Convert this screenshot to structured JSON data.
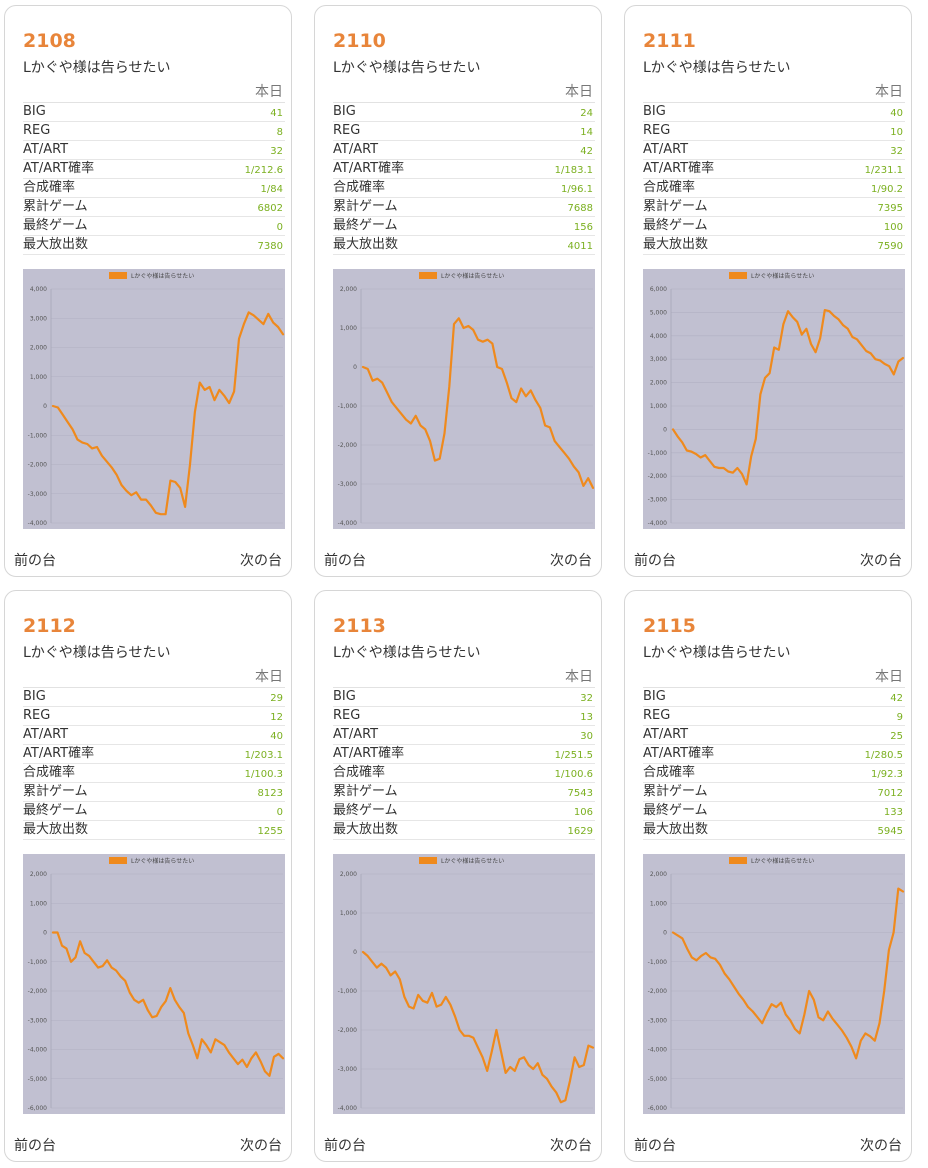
{
  "header_col": "本日",
  "nav": {
    "prev": "前の台",
    "next": "次の台"
  },
  "machine_name": "Lかぐや様は告らせたい",
  "legend_color": "#ef8a1d",
  "cards": [
    {
      "number": "2108",
      "name": "Lかぐや様は告らせたい",
      "stats": [
        {
          "label": "BIG",
          "value": "41"
        },
        {
          "label": "REG",
          "value": "8"
        },
        {
          "label": "AT/ART",
          "value": "32"
        },
        {
          "label": "AT/ART確率",
          "value": "1/212.6"
        },
        {
          "label": "合成確率",
          "value": "1/84"
        },
        {
          "label": "累計ゲーム",
          "value": "6802"
        },
        {
          "label": "最終ゲーム",
          "value": "0"
        },
        {
          "label": "最大放出数",
          "value": "7380"
        }
      ]
    },
    {
      "number": "2110",
      "name": "Lかぐや様は告らせたい",
      "stats": [
        {
          "label": "BIG",
          "value": "24"
        },
        {
          "label": "REG",
          "value": "14"
        },
        {
          "label": "AT/ART",
          "value": "42"
        },
        {
          "label": "AT/ART確率",
          "value": "1/183.1"
        },
        {
          "label": "合成確率",
          "value": "1/96.1"
        },
        {
          "label": "累計ゲーム",
          "value": "7688"
        },
        {
          "label": "最終ゲーム",
          "value": "156"
        },
        {
          "label": "最大放出数",
          "value": "4011"
        }
      ]
    },
    {
      "number": "2111",
      "name": "Lかぐや様は告らせたい",
      "stats": [
        {
          "label": "BIG",
          "value": "40"
        },
        {
          "label": "REG",
          "value": "10"
        },
        {
          "label": "AT/ART",
          "value": "32"
        },
        {
          "label": "AT/ART確率",
          "value": "1/231.1"
        },
        {
          "label": "合成確率",
          "value": "1/90.2"
        },
        {
          "label": "累計ゲーム",
          "value": "7395"
        },
        {
          "label": "最終ゲーム",
          "value": "100"
        },
        {
          "label": "最大放出数",
          "value": "7590"
        }
      ]
    },
    {
      "number": "2112",
      "name": "Lかぐや様は告らせたい",
      "stats": [
        {
          "label": "BIG",
          "value": "29"
        },
        {
          "label": "REG",
          "value": "12"
        },
        {
          "label": "AT/ART",
          "value": "40"
        },
        {
          "label": "AT/ART確率",
          "value": "1/203.1"
        },
        {
          "label": "合成確率",
          "value": "1/100.3"
        },
        {
          "label": "累計ゲーム",
          "value": "8123"
        },
        {
          "label": "最終ゲーム",
          "value": "0"
        },
        {
          "label": "最大放出数",
          "value": "1255"
        }
      ]
    },
    {
      "number": "2113",
      "name": "Lかぐや様は告らせたい",
      "stats": [
        {
          "label": "BIG",
          "value": "32"
        },
        {
          "label": "REG",
          "value": "13"
        },
        {
          "label": "AT/ART",
          "value": "30"
        },
        {
          "label": "AT/ART確率",
          "value": "1/251.5"
        },
        {
          "label": "合成確率",
          "value": "1/100.6"
        },
        {
          "label": "累計ゲーム",
          "value": "7543"
        },
        {
          "label": "最終ゲーム",
          "value": "106"
        },
        {
          "label": "最大放出数",
          "value": "1629"
        }
      ]
    },
    {
      "number": "2115",
      "name": "Lかぐや様は告らせたい",
      "stats": [
        {
          "label": "BIG",
          "value": "42"
        },
        {
          "label": "REG",
          "value": "9"
        },
        {
          "label": "AT/ART",
          "value": "25"
        },
        {
          "label": "AT/ART確率",
          "value": "1/280.5"
        },
        {
          "label": "合成確率",
          "value": "1/92.3"
        },
        {
          "label": "累計ゲーム",
          "value": "7012"
        },
        {
          "label": "最終ゲーム",
          "value": "133"
        },
        {
          "label": "最大放出数",
          "value": "5945"
        }
      ]
    }
  ],
  "chart_data": [
    {
      "type": "line",
      "series": [
        {
          "name": "Lかぐや様は告らせたい",
          "color": "#ef8a1d"
        }
      ],
      "ylim": [
        -4000,
        4000
      ],
      "yticks": [
        "4,000",
        "3,000",
        "2,000",
        "1,000",
        "0",
        "-1,000",
        "-2,000",
        "-3,000",
        "-4,000"
      ],
      "values": [
        0,
        -50,
        -300,
        -550,
        -800,
        -1150,
        -1250,
        -1300,
        -1450,
        -1400,
        -1700,
        -1900,
        -2100,
        -2350,
        -2700,
        -2900,
        -3050,
        -2950,
        -3200,
        -3200,
        -3400,
        -3650,
        -3700,
        -3700,
        -2550,
        -2600,
        -2800,
        -3450,
        -2000,
        -200,
        800,
        550,
        650,
        200,
        550,
        350,
        100,
        500,
        2300,
        2800,
        3200,
        3100,
        2950,
        2800,
        3150,
        2850,
        2700,
        2450
      ]
    },
    {
      "type": "line",
      "series": [
        {
          "name": "Lかぐや様は告らせたい",
          "color": "#ef8a1d"
        }
      ],
      "ylim": [
        -4000,
        2000
      ],
      "yticks": [
        "2,000",
        "1,000",
        "0",
        "-1,000",
        "-2,000",
        "-3,000",
        "-4,000"
      ],
      "values": [
        0,
        -50,
        -350,
        -300,
        -400,
        -650,
        -900,
        -1050,
        -1200,
        -1350,
        -1450,
        -1250,
        -1500,
        -1600,
        -1900,
        -2400,
        -2350,
        -1700,
        -500,
        1100,
        1250,
        1000,
        1050,
        950,
        700,
        650,
        700,
        600,
        0,
        -50,
        -400,
        -800,
        -900,
        -550,
        -750,
        -600,
        -850,
        -1050,
        -1500,
        -1550,
        -1900,
        -2050,
        -2200,
        -2350,
        -2550,
        -2700,
        -3050,
        -2850,
        -3100
      ]
    },
    {
      "type": "line",
      "series": [
        {
          "name": "Lかぐや様は告らせたい",
          "color": "#ef8a1d"
        }
      ],
      "ylim": [
        -4000,
        6000
      ],
      "yticks": [
        "6,000",
        "5,000",
        "4,000",
        "3,000",
        "2,000",
        "1,000",
        "0",
        "-1,000",
        "-2,000",
        "-3,000",
        "-4,000"
      ],
      "values": [
        0,
        -300,
        -550,
        -900,
        -950,
        -1050,
        -1200,
        -1100,
        -1350,
        -1600,
        -1650,
        -1650,
        -1800,
        -1850,
        -1650,
        -1900,
        -2350,
        -1150,
        -400,
        1500,
        2200,
        2400,
        3500,
        3400,
        4500,
        5050,
        4800,
        4600,
        4050,
        4300,
        3650,
        3300,
        3900,
        5100,
        5050,
        4850,
        4700,
        4450,
        4300,
        3950,
        3850,
        3600,
        3350,
        3250,
        3000,
        2950,
        2800,
        2700,
        2350,
        2900,
        3050
      ]
    },
    {
      "type": "line",
      "series": [
        {
          "name": "Lかぐや様は告らせたい",
          "color": "#ef8a1d"
        }
      ],
      "ylim": [
        -6000,
        2000
      ],
      "yticks": [
        "2,000",
        "1,000",
        "0",
        "-1,000",
        "-2,000",
        "-3,000",
        "-4,000",
        "-5,000",
        "-6,000"
      ],
      "values": [
        0,
        0,
        -450,
        -550,
        -1000,
        -850,
        -300,
        -700,
        -800,
        -1000,
        -1200,
        -1150,
        -950,
        -1200,
        -1300,
        -1500,
        -1650,
        -2050,
        -2300,
        -2400,
        -2300,
        -2650,
        -2900,
        -2850,
        -2550,
        -2350,
        -1900,
        -2300,
        -2550,
        -2750,
        -3450,
        -3850,
        -4300,
        -3650,
        -3850,
        -4100,
        -3650,
        -3750,
        -3850,
        -4100,
        -4300,
        -4500,
        -4350,
        -4600,
        -4300,
        -4100,
        -4400,
        -4750,
        -4900,
        -4250,
        -4150,
        -4300
      ]
    },
    {
      "type": "line",
      "series": [
        {
          "name": "Lかぐや様は告らせたい",
          "color": "#ef8a1d"
        }
      ],
      "ylim": [
        -4000,
        2000
      ],
      "yticks": [
        "2,000",
        "1,000",
        "0",
        "-1,000",
        "-2,000",
        "-3,000",
        "-4,000"
      ],
      "values": [
        0,
        -100,
        -250,
        -400,
        -300,
        -400,
        -600,
        -500,
        -700,
        -1150,
        -1400,
        -1450,
        -1100,
        -1250,
        -1300,
        -1050,
        -1400,
        -1350,
        -1150,
        -1350,
        -1650,
        -2000,
        -2150,
        -2150,
        -2200,
        -2450,
        -2700,
        -3050,
        -2550,
        -2000,
        -2550,
        -3100,
        -2950,
        -3050,
        -2750,
        -2700,
        -2900,
        -3000,
        -2850,
        -3150,
        -3250,
        -3450,
        -3600,
        -3850,
        -3800,
        -3300,
        -2700,
        -2950,
        -2900,
        -2400,
        -2450
      ]
    },
    {
      "type": "line",
      "series": [
        {
          "name": "Lかぐや様は告らせたい",
          "color": "#ef8a1d"
        }
      ],
      "ylim": [
        -6000,
        2000
      ],
      "yticks": [
        "2,000",
        "1,000",
        "0",
        "-1,000",
        "-2,000",
        "-3,000",
        "-4,000",
        "-5,000",
        "-6,000"
      ],
      "values": [
        0,
        -100,
        -200,
        -550,
        -850,
        -950,
        -800,
        -700,
        -850,
        -900,
        -1100,
        -1400,
        -1600,
        -1850,
        -2100,
        -2300,
        -2550,
        -2700,
        -2900,
        -3100,
        -2750,
        -2450,
        -2550,
        -2400,
        -2800,
        -3000,
        -3300,
        -3450,
        -2800,
        -2000,
        -2300,
        -2900,
        -3000,
        -2700,
        -2950,
        -3150,
        -3350,
        -3600,
        -3900,
        -4300,
        -3700,
        -3450,
        -3550,
        -3700,
        -3100,
        -2000,
        -600,
        0,
        1500,
        1400
      ]
    }
  ]
}
